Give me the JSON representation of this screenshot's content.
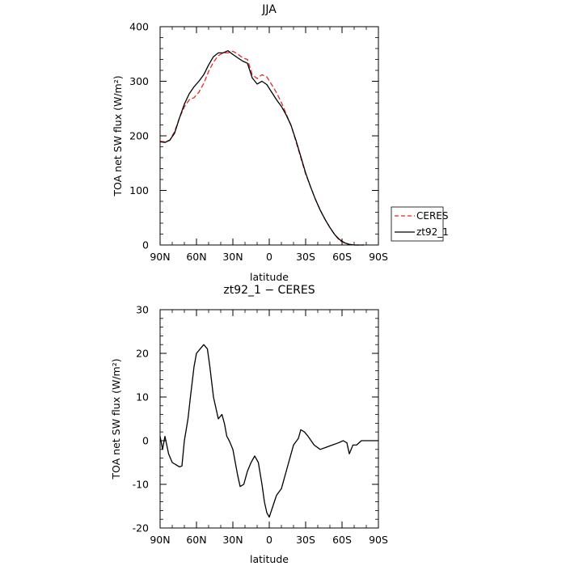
{
  "chart_data": [
    {
      "type": "line",
      "title": "JJA",
      "xlabel": "latitude",
      "ylabel": "TOA net SW flux (W/m²)",
      "xlim": [
        90,
        -90
      ],
      "ylim": [
        0,
        400
      ],
      "x_tick_values": [
        90,
        60,
        30,
        0,
        -30,
        -60,
        -90
      ],
      "x_tick_labels": [
        "90N",
        "60N",
        "30N",
        "0",
        "30S",
        "60S",
        "90S"
      ],
      "y_ticks": [
        0,
        100,
        200,
        300,
        400
      ],
      "grid": false,
      "legend": {
        "position": "right",
        "entries": [
          "CERES",
          "zt92_1"
        ]
      },
      "series": [
        {
          "name": "CERES",
          "color": "#e8261f",
          "dash": "dashed",
          "x": [
            90,
            86,
            82,
            78,
            74,
            70,
            66,
            62,
            58,
            54,
            50,
            46,
            42,
            38,
            34,
            30,
            26,
            22,
            18,
            14,
            10,
            6,
            2,
            -2,
            -6,
            -10,
            -14,
            -18,
            -22,
            -26,
            -30,
            -34,
            -38,
            -42,
            -46,
            -50,
            -54,
            -58,
            -62,
            -66,
            -70,
            -74,
            -78
          ],
          "y": [
            190,
            189,
            192,
            208,
            233,
            253,
            266,
            270,
            280,
            296,
            318,
            335,
            347,
            352,
            352,
            355,
            350,
            343,
            340,
            312,
            305,
            312,
            308,
            294,
            279,
            261,
            240,
            219,
            190,
            160,
            130,
            107,
            84,
            64,
            47,
            32,
            19,
            8,
            4,
            1,
            0,
            0,
            0
          ]
        },
        {
          "name": "zt92_1",
          "color": "#000000",
          "dash": "solid",
          "x": [
            90,
            86,
            82,
            78,
            74,
            70,
            66,
            62,
            58,
            54,
            50,
            46,
            42,
            38,
            34,
            30,
            26,
            22,
            18,
            14,
            10,
            6,
            2,
            -2,
            -6,
            -10,
            -14,
            -18,
            -22,
            -26,
            -30,
            -34,
            -38,
            -42,
            -46,
            -50,
            -54,
            -58,
            -62,
            -66,
            -70,
            -74,
            -78
          ],
          "y": [
            189,
            188,
            192,
            205,
            233,
            258,
            277,
            290,
            300,
            312,
            330,
            345,
            352,
            352,
            356,
            349,
            343,
            337,
            333,
            306,
            295,
            300,
            294,
            280,
            266,
            254,
            238,
            219,
            192,
            162,
            132,
            107,
            84,
            64,
            47,
            32,
            19,
            10,
            4,
            1,
            0,
            0,
            0
          ]
        }
      ]
    },
    {
      "type": "line",
      "title": "zt92_1 − CERES",
      "xlabel": "latitude",
      "ylabel": "TOA net SW flux (W/m²)",
      "xlim": [
        90,
        -90
      ],
      "ylim": [
        -20,
        30
      ],
      "x_tick_values": [
        90,
        60,
        30,
        0,
        -30,
        -60,
        -90
      ],
      "x_tick_labels": [
        "90N",
        "60N",
        "30N",
        "0",
        "30S",
        "60S",
        "90S"
      ],
      "y_ticks": [
        -20,
        -10,
        0,
        10,
        20,
        30
      ],
      "grid": false,
      "series": [
        {
          "color": "#000000",
          "dash": "solid",
          "x": [
            90,
            88,
            86,
            83,
            80,
            77,
            74,
            72,
            70,
            67,
            65,
            62,
            60,
            57,
            54,
            51,
            49,
            46,
            42,
            39,
            37,
            35,
            33,
            30,
            28,
            26,
            24,
            21,
            18,
            15,
            12,
            9,
            6,
            4,
            2,
            0,
            -3,
            -6,
            -10,
            -13,
            -16,
            -18,
            -20,
            -24,
            -26,
            -29,
            -32,
            -37,
            -42,
            -47,
            -52,
            -57,
            -61,
            -64,
            -66,
            -69,
            -72,
            -76,
            -82,
            -90
          ],
          "y": [
            1,
            -2,
            1,
            -3,
            -5,
            -5.5,
            -6,
            -5.8,
            0,
            5,
            10,
            17,
            20,
            21,
            22,
            21,
            17,
            10,
            5,
            6,
            4,
            1,
            0,
            -2,
            -5,
            -8,
            -10.5,
            -10,
            -7,
            -5,
            -3.5,
            -5,
            -10,
            -14,
            -16.5,
            -17.5,
            -15,
            -12.5,
            -11,
            -8,
            -5,
            -3,
            -1,
            0.5,
            2.5,
            2,
            1,
            -1,
            -2,
            -1.5,
            -1,
            -0.5,
            0,
            -0.5,
            -3,
            -1,
            -1,
            0,
            0,
            0
          ]
        }
      ]
    }
  ]
}
